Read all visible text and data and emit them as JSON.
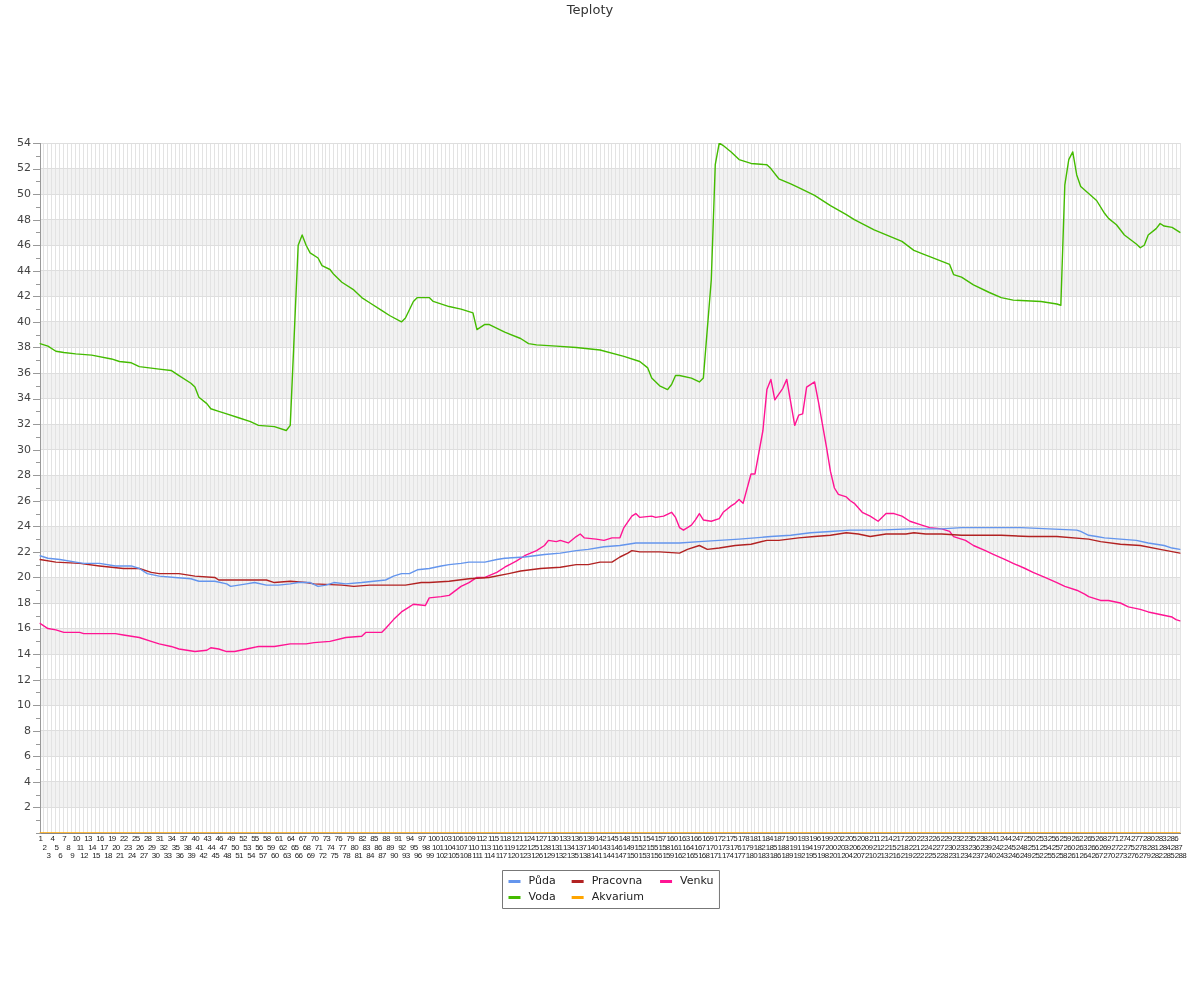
{
  "chart_data": {
    "type": "line",
    "title": "Teploty",
    "categories": [
      "1",
      "2",
      "3",
      "4",
      "5",
      "6",
      "7",
      "8",
      "9",
      "10",
      "11",
      "12",
      "13",
      "14",
      "15",
      "16",
      "17",
      "18",
      "19",
      "20",
      "21",
      "22",
      "23",
      "24",
      "25",
      "26",
      "27",
      "28",
      "29",
      "30",
      "31",
      "32",
      "33",
      "34",
      "35",
      "36",
      "37",
      "38",
      "39",
      "40",
      "41",
      "42",
      "43",
      "44",
      "45",
      "46",
      "47",
      "48",
      "49",
      "50",
      "51",
      "52",
      "53",
      "54",
      "55",
      "56",
      "57",
      "58",
      "59",
      "60",
      "61",
      "62",
      "63",
      "64",
      "65",
      "66",
      "67",
      "68",
      "69",
      "70",
      "71",
      "72",
      "73",
      "74",
      "75",
      "76",
      "77",
      "78",
      "79",
      "80",
      "81",
      "82",
      "83",
      "84",
      "85",
      "86",
      "87",
      "88",
      "89",
      "90",
      "91",
      "92",
      "93",
      "94",
      "95",
      "96",
      "97",
      "98",
      "99",
      "100",
      "101",
      "102",
      "103",
      "104",
      "105",
      "106",
      "107",
      "108",
      "109",
      "110",
      "111",
      "112",
      "113",
      "114",
      "115",
      "116",
      "117",
      "118",
      "119",
      "120",
      "121",
      "122",
      "123",
      "124",
      "125",
      "126",
      "127",
      "128",
      "129",
      "130",
      "131",
      "132",
      "133",
      "134",
      "135",
      "136",
      "137",
      "138",
      "139",
      "140",
      "141",
      "142",
      "143",
      "144",
      "145",
      "146",
      "147",
      "148",
      "149",
      "150",
      "151",
      "152",
      "153",
      "154",
      "155",
      "156",
      "157",
      "158",
      "159",
      "160",
      "161",
      "162",
      "163",
      "164",
      "165",
      "166",
      "167",
      "168",
      "169",
      "170",
      "171",
      "172",
      "173",
      "174",
      "175",
      "176",
      "177",
      "178",
      "179",
      "180",
      "181",
      "182",
      "183",
      "184",
      "185",
      "186",
      "187",
      "188",
      "189",
      "190",
      "191",
      "192",
      "193",
      "194",
      "195",
      "196",
      "197",
      "198",
      "199",
      "200",
      "201",
      "202",
      "203",
      "204",
      "205",
      "206",
      "207",
      "208",
      "209",
      "210",
      "211",
      "212",
      "213",
      "214",
      "215",
      "216",
      "217",
      "218",
      "219",
      "220",
      "221",
      "222",
      "223",
      "224",
      "225",
      "226",
      "227",
      "228",
      "229",
      "230",
      "231",
      "232",
      "233",
      "234",
      "235",
      "236",
      "237",
      "238",
      "239",
      "240",
      "241",
      "242",
      "243",
      "244",
      "245",
      "246",
      "247",
      "248",
      "249",
      "250",
      "251",
      "252",
      "253",
      "254",
      "255",
      "256",
      "257",
      "258",
      "259",
      "260",
      "261",
      "262",
      "263",
      "264",
      "265",
      "266",
      "267",
      "268",
      "269",
      "270",
      "271",
      "272",
      "273",
      "274",
      "275",
      "276",
      "277",
      "278",
      "279",
      "280",
      "281",
      "282",
      "283",
      "284",
      "285",
      "286",
      "287",
      "288"
    ],
    "series": [
      {
        "name": "Půda",
        "color": "#6495ed",
        "x": [
          "1",
          "3",
          "6",
          "10",
          "12",
          "16",
          "20",
          "24",
          "26",
          "28",
          "31",
          "35",
          "39",
          "41",
          "45",
          "48",
          "49",
          "53",
          "55",
          "58",
          "61",
          "64",
          "66",
          "69",
          "71",
          "73",
          "75",
          "78",
          "82",
          "85",
          "88",
          "90",
          "92",
          "94",
          "96",
          "99",
          "102",
          "104",
          "107",
          "109",
          "113",
          "116",
          "118",
          "123",
          "128",
          "132",
          "136",
          "139",
          "143",
          "147",
          "151",
          "155",
          "158",
          "162",
          "167",
          "172",
          "177",
          "181",
          "185",
          "190",
          "195",
          "200",
          "205",
          "212",
          "220",
          "228",
          "233",
          "240",
          "248",
          "255",
          "262",
          "263",
          "265",
          "267",
          "269",
          "273",
          "277",
          "280",
          "284",
          "286",
          "288"
        ],
        "values": [
          21.7,
          21.5,
          21.4,
          21.2,
          21.1,
          21.1,
          20.9,
          20.9,
          20.7,
          20.3,
          20.1,
          20.0,
          19.9,
          19.7,
          19.7,
          19.5,
          19.3,
          19.5,
          19.6,
          19.4,
          19.4,
          19.5,
          19.6,
          19.6,
          19.3,
          19.4,
          19.6,
          19.5,
          19.6,
          19.7,
          19.8,
          20.1,
          20.3,
          20.3,
          20.6,
          20.7,
          20.9,
          21.0,
          21.1,
          21.2,
          21.2,
          21.4,
          21.5,
          21.6,
          21.8,
          21.9,
          22.1,
          22.2,
          22.4,
          22.5,
          22.7,
          22.7,
          22.7,
          22.7,
          22.8,
          22.9,
          23.0,
          23.1,
          23.2,
          23.3,
          23.5,
          23.6,
          23.7,
          23.7,
          23.8,
          23.8,
          23.9,
          23.9,
          23.9,
          23.8,
          23.7,
          23.6,
          23.3,
          23.2,
          23.1,
          23.0,
          22.9,
          22.7,
          22.5,
          22.3,
          22.2
        ]
      },
      {
        "name": "Pracovna",
        "color": "#b22222",
        "x": [
          "1",
          "5",
          "11",
          "16",
          "19",
          "22",
          "26",
          "29",
          "31",
          "36",
          "40",
          "45",
          "46",
          "51",
          "58",
          "60",
          "64",
          "68",
          "70",
          "77",
          "80",
          "84",
          "93",
          "97",
          "99",
          "104",
          "109",
          "114",
          "119",
          "122",
          "127",
          "132",
          "136",
          "139",
          "142",
          "145",
          "147",
          "149",
          "150",
          "152",
          "157",
          "162",
          "164",
          "167",
          "169",
          "172",
          "176",
          "180",
          "184",
          "187",
          "192",
          "196",
          "200",
          "204",
          "207",
          "210",
          "214",
          "219",
          "221",
          "224",
          "228",
          "233",
          "243",
          "250",
          "257",
          "265",
          "268",
          "273",
          "278",
          "283",
          "288"
        ],
        "values": [
          21.4,
          21.2,
          21.1,
          20.9,
          20.8,
          20.7,
          20.7,
          20.4,
          20.3,
          20.3,
          20.1,
          20.0,
          19.8,
          19.8,
          19.8,
          19.6,
          19.7,
          19.6,
          19.5,
          19.4,
          19.3,
          19.4,
          19.4,
          19.6,
          19.6,
          19.7,
          19.9,
          20.0,
          20.3,
          20.5,
          20.7,
          20.8,
          21.0,
          21.0,
          21.2,
          21.2,
          21.6,
          21.9,
          22.1,
          22.0,
          22.0,
          21.9,
          22.2,
          22.5,
          22.2,
          22.3,
          22.5,
          22.6,
          22.9,
          22.9,
          23.1,
          23.2,
          23.3,
          23.5,
          23.4,
          23.2,
          23.4,
          23.4,
          23.5,
          23.4,
          23.4,
          23.3,
          23.3,
          23.2,
          23.2,
          23.0,
          22.8,
          22.6,
          22.5,
          22.2,
          21.9
        ]
      },
      {
        "name": "Venku",
        "color": "#ff1493",
        "x": [
          "1",
          "3",
          "5",
          "7",
          "11",
          "12",
          "16",
          "20",
          "22",
          "26",
          "29",
          "31",
          "34",
          "36",
          "40",
          "43",
          "44",
          "46",
          "48",
          "50",
          "53",
          "56",
          "58",
          "60",
          "64",
          "68",
          "70",
          "74",
          "78",
          "82",
          "83",
          "87",
          "88",
          "90",
          "92",
          "94",
          "95",
          "98",
          "99",
          "102",
          "104",
          "107",
          "109",
          "111",
          "113",
          "116",
          "118",
          "121",
          "123",
          "126",
          "128",
          "129",
          "131",
          "132",
          "134",
          "136",
          "137",
          "138",
          "141",
          "143",
          "145",
          "147",
          "148",
          "150",
          "151",
          "152",
          "155",
          "156",
          "158",
          "160",
          "161",
          "162",
          "163",
          "165",
          "166",
          "167",
          "168",
          "170",
          "172",
          "173",
          "175",
          "176",
          "177",
          "178",
          "180",
          "181",
          "183",
          "184",
          "185",
          "186",
          "188",
          "189",
          "190",
          "191",
          "192",
          "193",
          "194",
          "196",
          "197",
          "199",
          "200",
          "201",
          "202",
          "204",
          "205",
          "206",
          "208",
          "210",
          "212",
          "214",
          "216",
          "218",
          "220",
          "223",
          "225",
          "228",
          "230",
          "231",
          "234",
          "236",
          "239",
          "241",
          "244",
          "246",
          "249",
          "251",
          "254",
          "257",
          "259",
          "262",
          "264",
          "265",
          "268",
          "270",
          "273",
          "275",
          "278",
          "280",
          "283",
          "286",
          "287",
          "288"
        ],
        "values": [
          16.4,
          16.0,
          15.9,
          15.7,
          15.7,
          15.6,
          15.6,
          15.6,
          15.5,
          15.3,
          15.0,
          14.8,
          14.6,
          14.4,
          14.2,
          14.3,
          14.5,
          14.4,
          14.2,
          14.2,
          14.4,
          14.6,
          14.6,
          14.6,
          14.8,
          14.8,
          14.9,
          15.0,
          15.3,
          15.4,
          15.7,
          15.7,
          16.0,
          16.7,
          17.3,
          17.7,
          17.9,
          17.8,
          18.4,
          18.5,
          18.6,
          19.3,
          19.6,
          20.0,
          20.0,
          20.4,
          20.8,
          21.3,
          21.7,
          22.1,
          22.5,
          22.9,
          22.8,
          22.9,
          22.7,
          23.2,
          23.4,
          23.1,
          23.0,
          22.9,
          23.1,
          23.1,
          23.9,
          24.8,
          25.0,
          24.7,
          24.8,
          24.7,
          24.8,
          25.1,
          24.7,
          23.9,
          23.7,
          24.1,
          24.5,
          25.0,
          24.5,
          24.4,
          24.6,
          25.1,
          25.6,
          25.8,
          26.1,
          25.8,
          28.1,
          28.1,
          31.5,
          34.7,
          35.5,
          33.9,
          34.8,
          35.5,
          33.7,
          31.9,
          32.7,
          32.8,
          34.9,
          35.3,
          33.7,
          30.2,
          28.3,
          27.0,
          26.5,
          26.3,
          26.0,
          25.8,
          25.1,
          24.8,
          24.4,
          25.0,
          25.0,
          24.8,
          24.4,
          24.1,
          23.9,
          23.8,
          23.6,
          23.2,
          22.9,
          22.5,
          22.1,
          21.8,
          21.4,
          21.1,
          20.7,
          20.4,
          20.0,
          19.6,
          19.3,
          19.0,
          18.7,
          18.5,
          18.2,
          18.2,
          18.0,
          17.7,
          17.5,
          17.3,
          17.1,
          16.9,
          16.7,
          16.6
        ]
      },
      {
        "name": "Voda",
        "color": "#44bb00",
        "x": [
          "1",
          "3",
          "5",
          "7",
          "10",
          "14",
          "19",
          "21",
          "24",
          "26",
          "31",
          "34",
          "36",
          "39",
          "40",
          "41",
          "43",
          "44",
          "46",
          "48",
          "51",
          "54",
          "56",
          "60",
          "63",
          "64",
          "66",
          "67",
          "68",
          "69",
          "71",
          "72",
          "74",
          "75",
          "77",
          "80",
          "82",
          "84",
          "87",
          "89",
          "92",
          "93",
          "95",
          "96",
          "99",
          "100",
          "104",
          "107",
          "110",
          "111",
          "113",
          "114",
          "118",
          "122",
          "124",
          "126",
          "131",
          "136",
          "142",
          "148",
          "152",
          "154",
          "155",
          "157",
          "159",
          "160",
          "161",
          "162",
          "165",
          "167",
          "168",
          "170",
          "171",
          "172",
          "173",
          "175",
          "177",
          "180",
          "184",
          "185",
          "187",
          "190",
          "192",
          "196",
          "200",
          "204",
          "206",
          "211",
          "218",
          "221",
          "225",
          "230",
          "231",
          "233",
          "236",
          "240",
          "243",
          "246",
          "253",
          "257",
          "258",
          "259",
          "260",
          "261",
          "262",
          "263",
          "267",
          "269",
          "270",
          "272",
          "274",
          "277",
          "278",
          "279",
          "280",
          "282",
          "283",
          "284",
          "286",
          "288"
        ],
        "values": [
          38.3,
          38.1,
          37.7,
          37.6,
          37.5,
          37.4,
          37.1,
          36.9,
          36.8,
          36.5,
          36.3,
          36.2,
          35.8,
          35.2,
          34.9,
          34.1,
          33.6,
          33.2,
          33.0,
          32.8,
          32.5,
          32.2,
          31.9,
          31.8,
          31.5,
          31.9,
          46.0,
          46.8,
          46.0,
          45.4,
          45.0,
          44.4,
          44.1,
          43.7,
          43.1,
          42.5,
          41.9,
          41.5,
          40.9,
          40.5,
          40.0,
          40.3,
          41.6,
          41.9,
          41.9,
          41.6,
          41.2,
          41.0,
          40.7,
          39.4,
          39.8,
          39.8,
          39.2,
          38.7,
          38.3,
          38.2,
          38.1,
          38.0,
          37.8,
          37.3,
          36.9,
          36.4,
          35.6,
          35.0,
          34.7,
          35.1,
          35.8,
          35.8,
          35.6,
          35.3,
          35.6,
          43.3,
          52.3,
          54.0,
          53.8,
          53.3,
          52.7,
          52.4,
          52.3,
          52.0,
          51.2,
          50.8,
          50.5,
          49.9,
          49.1,
          48.4,
          48.0,
          47.2,
          46.3,
          45.6,
          45.1,
          44.5,
          43.7,
          43.5,
          42.9,
          42.3,
          41.9,
          41.7,
          41.6,
          41.4,
          41.3,
          50.7,
          52.7,
          53.3,
          51.5,
          50.6,
          49.5,
          48.5,
          48.1,
          47.6,
          46.8,
          46.1,
          45.8,
          46.0,
          46.8,
          47.3,
          47.7,
          47.5,
          47.4,
          47.0
        ]
      },
      {
        "name": "Akvarium",
        "color": "#ffa500",
        "x": [
          "1",
          "288"
        ],
        "values": [
          0,
          0
        ]
      }
    ],
    "ylim": [
      0,
      54
    ],
    "yticks": [
      {
        "value": 0,
        "label": null
      },
      {
        "value": 1,
        "label": null
      },
      2,
      {
        "value": 3,
        "label": null
      },
      4,
      {
        "value": 5,
        "label": null
      },
      6,
      {
        "value": 7,
        "label": null
      },
      8,
      {
        "value": 9,
        "label": null
      },
      10,
      {
        "value": 11,
        "label": null
      },
      12,
      {
        "value": 13,
        "label": null
      },
      14,
      {
        "value": 15,
        "label": null
      },
      16,
      {
        "value": 17,
        "label": null
      },
      18,
      {
        "value": 19,
        "label": null
      },
      20,
      {
        "value": 21,
        "label": null
      },
      22,
      {
        "value": 23,
        "label": null
      },
      24,
      {
        "value": 25,
        "label": null
      },
      26,
      {
        "value": 27,
        "label": null
      },
      28,
      {
        "value": 29,
        "label": null
      },
      30,
      {
        "value": 31,
        "label": null
      },
      32,
      {
        "value": 33,
        "label": null
      },
      34,
      {
        "value": 35,
        "label": null
      },
      36,
      {
        "value": 37,
        "label": null
      },
      38,
      {
        "value": 39,
        "label": null
      },
      40,
      {
        "value": 41,
        "label": null
      },
      42,
      {
        "value": 43,
        "label": null
      },
      44,
      {
        "value": 45,
        "label": null
      },
      46,
      {
        "value": 47,
        "label": null
      },
      48,
      {
        "value": 49,
        "label": null
      },
      50,
      {
        "value": 51,
        "label": null
      },
      52,
      {
        "value": 53,
        "label": null
      },
      54
    ],
    "grid": true,
    "legend": "bottom",
    "marker": "none",
    "line_style": "solid"
  }
}
